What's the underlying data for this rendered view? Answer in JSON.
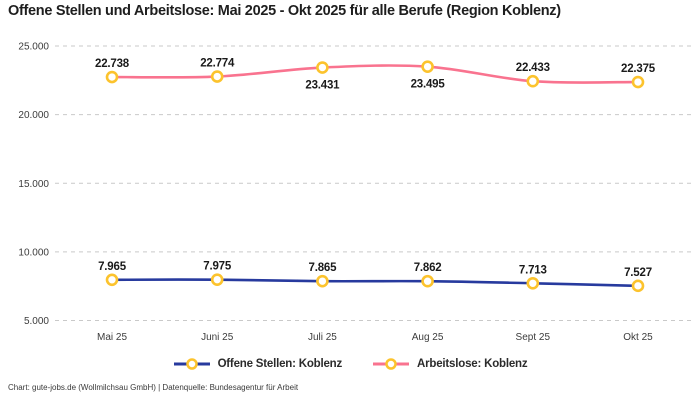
{
  "header": {
    "title": "Offene Stellen und Arbeitslose: Mai 2025 - Okt 2025 für alle Berufe (Region Koblenz)"
  },
  "footer": {
    "credit": "Chart: gute-jobs.de (Wollmilchsau GmbH) | Datenquelle: Bundesagentur für Arbeit"
  },
  "chart_data": {
    "type": "line",
    "title": "Offene Stellen und Arbeitslose: Mai 2025 - Okt 2025 für alle Berufe (Region Koblenz)",
    "categories": [
      "Mai 25",
      "Juni 25",
      "Juli 25",
      "Aug 25",
      "Sept 25",
      "Okt 25"
    ],
    "series": [
      {
        "name": "Offene Stellen: Koblenz",
        "color": "#273a9e",
        "values": [
          7965,
          7975,
          7865,
          7862,
          7713,
          7527
        ],
        "labels": [
          "7.965",
          "7.975",
          "7.865",
          "7.862",
          "7.713",
          "7.527"
        ],
        "label_below": [
          false,
          false,
          false,
          false,
          false,
          false
        ]
      },
      {
        "name": "Arbeitslose: Koblenz",
        "color": "#f9738f",
        "values": [
          22738,
          22774,
          23431,
          23495,
          22433,
          22375
        ],
        "labels": [
          "22.738",
          "22.774",
          "23.431",
          "23.495",
          "22.433",
          "22.375"
        ],
        "label_below": [
          false,
          false,
          true,
          true,
          false,
          false
        ]
      }
    ],
    "ylim": [
      5000,
      25000
    ],
    "yticks": [
      {
        "value": 25000,
        "label": "25.000"
      },
      {
        "value": 20000,
        "label": "20.000"
      },
      {
        "value": 15000,
        "label": "15.000"
      },
      {
        "value": 10000,
        "label": "10.000"
      },
      {
        "value": 5000,
        "label": "5.000"
      }
    ],
    "marker_color": "#fcc32d",
    "grid_color": "#c9c9c9",
    "grid": "dashed-horizontal",
    "legend_position": "bottom",
    "xlabel": "",
    "ylabel": ""
  }
}
